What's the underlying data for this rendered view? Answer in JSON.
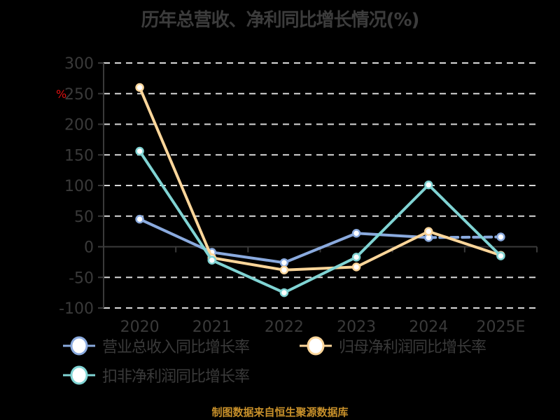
{
  "title": "历年总营收、净利同比增长情况(%)",
  "source": "制图数据来自恒生聚源数据库",
  "unit_label": "%",
  "colors": {
    "revenue": "#8aaade",
    "net_profit": "#fdd69a",
    "deducted_profit": "#80d4d4",
    "axis": "#3a3a3a",
    "grid": "#d8d8d8",
    "unit": "#e01010"
  },
  "legend": [
    {
      "label": "营业总收入同比增长率",
      "series": "revenue"
    },
    {
      "label": "归母净利润同比增长率",
      "series": "net_profit"
    },
    {
      "label": "扣非净利润同比增长率",
      "series": "deducted_profit"
    }
  ],
  "chart_data": {
    "type": "line",
    "title": "历年总营收、净利同比增长情况(%)",
    "xlabel": "",
    "ylabel": "%",
    "categories": [
      "2020",
      "2021",
      "2022",
      "2023",
      "2024",
      "2025E"
    ],
    "ylim": [
      -100,
      300
    ],
    "yticks": [
      300,
      250,
      200,
      150,
      100,
      50,
      0,
      -50,
      -100
    ],
    "grid": true,
    "legend_position": "bottom",
    "series": [
      {
        "name": "营业总收入同比增长率",
        "values": [
          45,
          -9,
          -26,
          22,
          15,
          16
        ]
      },
      {
        "name": "归母净利润同比增长率",
        "values": [
          260,
          -18,
          -38,
          -33,
          25,
          -14
        ]
      },
      {
        "name": "扣非净利润同比增长率",
        "values": [
          156,
          -22,
          -75,
          -17,
          101,
          -15
        ]
      }
    ]
  }
}
